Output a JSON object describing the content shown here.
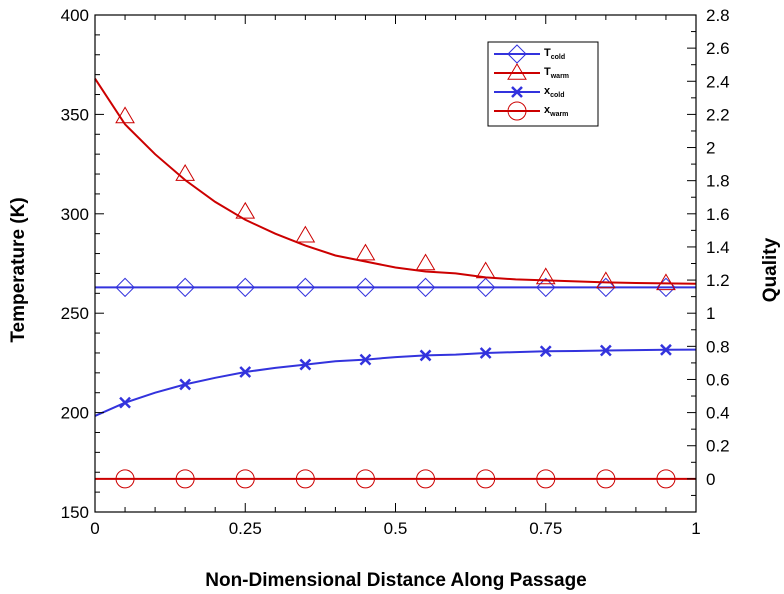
{
  "chart_data": {
    "type": "line",
    "xlabel": "Non-Dimensional Distance Along Passage",
    "ylabel_left": "Temperature (K)",
    "ylabel_right": "Quality",
    "xlim": [
      0,
      1
    ],
    "ylim_left": [
      150,
      400
    ],
    "ylim_right": [
      -0.2,
      2.8
    ],
    "x_ticks": [
      {
        "value": 0,
        "label": "0"
      },
      {
        "value": 0.25,
        "label": "0.25"
      },
      {
        "value": 0.5,
        "label": "0.5"
      },
      {
        "value": 0.75,
        "label": "0.75"
      },
      {
        "value": 1,
        "label": "1"
      }
    ],
    "y_left_ticks": [
      {
        "value": 150,
        "label": "150"
      },
      {
        "value": 200,
        "label": "200"
      },
      {
        "value": 250,
        "label": "250"
      },
      {
        "value": 300,
        "label": "300"
      },
      {
        "value": 350,
        "label": "350"
      },
      {
        "value": 400,
        "label": "400"
      }
    ],
    "y_right_ticks": [
      {
        "value": 0,
        "label": "0"
      },
      {
        "value": 0.2,
        "label": "0.2"
      },
      {
        "value": 0.4,
        "label": "0.4"
      },
      {
        "value": 0.6,
        "label": "0.6"
      },
      {
        "value": 0.8,
        "label": "0.8"
      },
      {
        "value": 1,
        "label": "1"
      },
      {
        "value": 1.2,
        "label": "1.2"
      },
      {
        "value": 1.4,
        "label": "1.4"
      },
      {
        "value": 1.6,
        "label": "1.6"
      },
      {
        "value": 1.8,
        "label": "1.8"
      },
      {
        "value": 2,
        "label": "2"
      },
      {
        "value": 2.2,
        "label": "2.2"
      },
      {
        "value": 2.4,
        "label": "2.4"
      },
      {
        "value": 2.6,
        "label": "2.6"
      },
      {
        "value": 2.8,
        "label": "2.8"
      }
    ],
    "grid": false,
    "legend_position": "top-right",
    "series": [
      {
        "name": "T",
        "subscript": "cold",
        "axis": "left",
        "color": "#3333dd",
        "marker": "diamond",
        "line_x": [
          0,
          1
        ],
        "line_y": [
          263,
          263
        ],
        "marker_x": [
          0.05,
          0.15,
          0.25,
          0.35,
          0.45,
          0.55,
          0.65,
          0.75,
          0.85,
          0.95
        ],
        "marker_y": [
          263,
          263,
          263,
          263,
          263,
          263,
          263,
          263,
          263,
          263
        ]
      },
      {
        "name": "T",
        "subscript": "warm",
        "axis": "left",
        "color": "#cc0000",
        "marker": "triangle",
        "line_x": [
          0,
          0.05,
          0.1,
          0.15,
          0.2,
          0.25,
          0.3,
          0.35,
          0.4,
          0.45,
          0.5,
          0.55,
          0.6,
          0.65,
          0.7,
          0.75,
          0.8,
          0.85,
          0.9,
          0.95,
          1
        ],
        "line_y": [
          368,
          345,
          330,
          317,
          306,
          297,
          290,
          284,
          279,
          276,
          273,
          271,
          270,
          268,
          267,
          266.5,
          266,
          265.5,
          265.2,
          265,
          264.8
        ],
        "marker_x": [
          0.05,
          0.15,
          0.25,
          0.35,
          0.45,
          0.55,
          0.65,
          0.75,
          0.85,
          0.95
        ],
        "marker_y": [
          349,
          320,
          301,
          289,
          280,
          275,
          271,
          268,
          266,
          265
        ]
      },
      {
        "name": "x",
        "subscript": "cold",
        "axis": "right",
        "color": "#3333dd",
        "marker": "x",
        "line_x": [
          0,
          0.05,
          0.1,
          0.15,
          0.2,
          0.25,
          0.3,
          0.35,
          0.4,
          0.45,
          0.5,
          0.55,
          0.6,
          0.65,
          0.7,
          0.75,
          0.8,
          0.85,
          0.9,
          0.95,
          1
        ],
        "line_y": [
          0.38,
          0.46,
          0.52,
          0.57,
          0.61,
          0.645,
          0.67,
          0.69,
          0.71,
          0.72,
          0.735,
          0.745,
          0.75,
          0.76,
          0.765,
          0.77,
          0.772,
          0.775,
          0.777,
          0.779,
          0.78
        ],
        "marker_x": [
          0.05,
          0.15,
          0.25,
          0.35,
          0.45,
          0.55,
          0.65,
          0.75,
          0.85,
          0.95
        ],
        "marker_y": [
          0.46,
          0.57,
          0.645,
          0.69,
          0.72,
          0.745,
          0.76,
          0.77,
          0.775,
          0.779
        ]
      },
      {
        "name": "x",
        "subscript": "warm",
        "axis": "right",
        "color": "#cc0000",
        "marker": "circle",
        "line_x": [
          0,
          1
        ],
        "line_y": [
          0,
          0
        ],
        "marker_x": [
          0.05,
          0.15,
          0.25,
          0.35,
          0.45,
          0.55,
          0.65,
          0.75,
          0.85,
          0.95
        ],
        "marker_y": [
          0,
          0,
          0,
          0,
          0,
          0,
          0,
          0,
          0,
          0
        ]
      }
    ]
  }
}
